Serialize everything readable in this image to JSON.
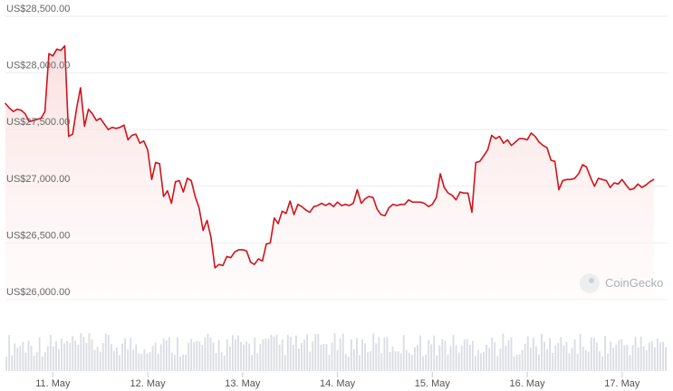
{
  "watermark": {
    "brand": "CoinGecko"
  },
  "colors": {
    "line": "#d0141b",
    "fill_top": "#fadddd",
    "volume": "#dadde2",
    "grid": "#eeeeee"
  },
  "chart_data": {
    "type": "line",
    "title": "",
    "xlabel": "",
    "ylabel": "",
    "ylim": [
      26000,
      28500
    ],
    "y_ticks": [
      26000,
      26500,
      27000,
      27500,
      28000,
      28500
    ],
    "y_tick_labels": [
      "US$26,000.00",
      "US$26,500.00",
      "US$27,000.00",
      "US$27,500.00",
      "US$28,000.00",
      "US$28,500.00"
    ],
    "x_ticks": [
      {
        "label": "11. May",
        "t": 0
      },
      {
        "label": "12. May",
        "t": 24
      },
      {
        "label": "13. May",
        "t": 48
      },
      {
        "label": "14. May",
        "t": 72
      },
      {
        "label": "15. May",
        "t": 96
      },
      {
        "label": "16. May",
        "t": 120
      },
      {
        "label": "17. May",
        "t": 144
      }
    ],
    "x_units": "hours since 11. May",
    "xlim": [
      -12,
      155.5
    ],
    "grid": true,
    "price": [
      [
        -12,
        27730
      ],
      [
        -11,
        27690
      ],
      [
        -10,
        27660
      ],
      [
        -9,
        27680
      ],
      [
        -8,
        27670
      ],
      [
        -7,
        27640
      ],
      [
        -6,
        27570
      ],
      [
        -5,
        27580
      ],
      [
        -4,
        27590
      ],
      [
        -3,
        27600
      ],
      [
        -2,
        27660
      ],
      [
        -1,
        28170
      ],
      [
        0,
        28150
      ],
      [
        1,
        28210
      ],
      [
        2,
        28200
      ],
      [
        3,
        28240
      ],
      [
        4,
        27440
      ],
      [
        5,
        27460
      ],
      [
        6,
        27690
      ],
      [
        7,
        27870
      ],
      [
        8,
        27530
      ],
      [
        9,
        27680
      ],
      [
        10,
        27640
      ],
      [
        11,
        27580
      ],
      [
        12,
        27600
      ],
      [
        13,
        27550
      ],
      [
        14,
        27500
      ],
      [
        15,
        27520
      ],
      [
        16,
        27510
      ],
      [
        17,
        27520
      ],
      [
        18,
        27540
      ],
      [
        19,
        27410
      ],
      [
        20,
        27450
      ],
      [
        21,
        27460
      ],
      [
        22,
        27380
      ],
      [
        23,
        27400
      ],
      [
        24,
        27320
      ],
      [
        25,
        27060
      ],
      [
        26,
        27210
      ],
      [
        27,
        27200
      ],
      [
        28,
        26910
      ],
      [
        29,
        26960
      ],
      [
        30,
        26850
      ],
      [
        31,
        27040
      ],
      [
        32,
        27050
      ],
      [
        33,
        26950
      ],
      [
        34,
        27070
      ],
      [
        35,
        27050
      ],
      [
        36,
        26910
      ],
      [
        37,
        26810
      ],
      [
        38,
        26610
      ],
      [
        39,
        26700
      ],
      [
        40,
        26550
      ],
      [
        41,
        26280
      ],
      [
        42,
        26310
      ],
      [
        43,
        26300
      ],
      [
        44,
        26380
      ],
      [
        45,
        26370
      ],
      [
        46,
        26420
      ],
      [
        47,
        26440
      ],
      [
        48,
        26440
      ],
      [
        49,
        26430
      ],
      [
        50,
        26330
      ],
      [
        51,
        26310
      ],
      [
        52,
        26360
      ],
      [
        53,
        26340
      ],
      [
        54,
        26490
      ],
      [
        55,
        26500
      ],
      [
        56,
        26720
      ],
      [
        57,
        26670
      ],
      [
        58,
        26780
      ],
      [
        59,
        26760
      ],
      [
        60,
        26870
      ],
      [
        61,
        26750
      ],
      [
        62,
        26840
      ],
      [
        63,
        26820
      ],
      [
        64,
        26790
      ],
      [
        65,
        26770
      ],
      [
        66,
        26820
      ],
      [
        67,
        26830
      ],
      [
        68,
        26850
      ],
      [
        69,
        26830
      ],
      [
        70,
        26850
      ],
      [
        71,
        26820
      ],
      [
        72,
        26860
      ],
      [
        73,
        26830
      ],
      [
        74,
        26840
      ],
      [
        75,
        26830
      ],
      [
        76,
        26850
      ],
      [
        77,
        26970
      ],
      [
        78,
        26850
      ],
      [
        79,
        26890
      ],
      [
        80,
        26910
      ],
      [
        81,
        26900
      ],
      [
        82,
        26800
      ],
      [
        83,
        26750
      ],
      [
        84,
        26740
      ],
      [
        85,
        26810
      ],
      [
        86,
        26840
      ],
      [
        87,
        26830
      ],
      [
        88,
        26840
      ],
      [
        89,
        26840
      ],
      [
        90,
        26880
      ],
      [
        91,
        26860
      ],
      [
        92,
        26860
      ],
      [
        93,
        26860
      ],
      [
        94,
        26850
      ],
      [
        95,
        26820
      ],
      [
        96,
        26840
      ],
      [
        97,
        26900
      ],
      [
        98,
        27110
      ],
      [
        99,
        26990
      ],
      [
        100,
        26940
      ],
      [
        101,
        26920
      ],
      [
        102,
        26880
      ],
      [
        103,
        26950
      ],
      [
        104,
        26940
      ],
      [
        105,
        26940
      ],
      [
        106,
        26770
      ],
      [
        107,
        27210
      ],
      [
        108,
        27220
      ],
      [
        109,
        27270
      ],
      [
        110,
        27320
      ],
      [
        111,
        27450
      ],
      [
        112,
        27420
      ],
      [
        113,
        27440
      ],
      [
        114,
        27380
      ],
      [
        115,
        27410
      ],
      [
        116,
        27360
      ],
      [
        117,
        27390
      ],
      [
        118,
        27420
      ],
      [
        119,
        27420
      ],
      [
        120,
        27410
      ],
      [
        121,
        27470
      ],
      [
        122,
        27440
      ],
      [
        123,
        27390
      ],
      [
        124,
        27360
      ],
      [
        125,
        27340
      ],
      [
        126,
        27230
      ],
      [
        127,
        27220
      ],
      [
        128,
        26970
      ],
      [
        129,
        27050
      ],
      [
        130,
        27060
      ],
      [
        131,
        27060
      ],
      [
        132,
        27070
      ],
      [
        133,
        27110
      ],
      [
        134,
        27190
      ],
      [
        135,
        27170
      ],
      [
        136,
        27080
      ],
      [
        137,
        27000
      ],
      [
        138,
        27070
      ],
      [
        139,
        27060
      ],
      [
        140,
        27050
      ],
      [
        141,
        26990
      ],
      [
        142,
        27030
      ],
      [
        143,
        27020
      ],
      [
        144,
        27060
      ],
      [
        145,
        27010
      ],
      [
        146,
        26970
      ],
      [
        147,
        26980
      ],
      [
        148,
        27020
      ],
      [
        149,
        26990
      ],
      [
        150,
        27010
      ],
      [
        151,
        27040
      ],
      [
        152,
        27060
      ]
    ]
  }
}
